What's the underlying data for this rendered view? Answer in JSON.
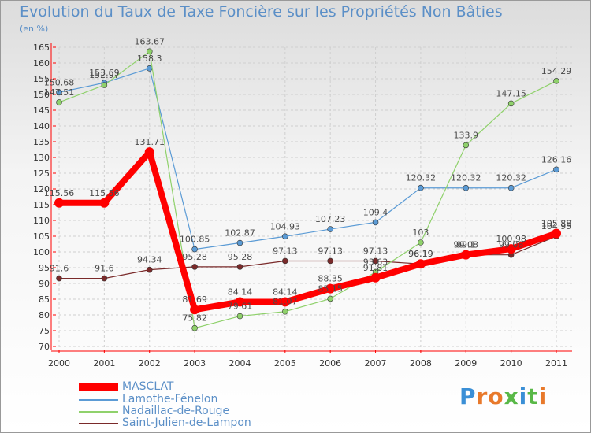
{
  "chart_data": {
    "type": "line",
    "title": "Evolution du Taux de Taxe Foncière sur les Propriétés Non Bâties",
    "ylabel": "(en %)",
    "xlabel": "",
    "x": [
      "2000",
      "2001",
      "2002",
      "2003",
      "2004",
      "2005",
      "2006",
      "2007",
      "2008",
      "2009",
      "2010",
      "2011"
    ],
    "ylim": [
      70,
      165
    ],
    "yticks": [
      70,
      75,
      80,
      85,
      90,
      95,
      100,
      105,
      110,
      115,
      120,
      125,
      130,
      135,
      140,
      145,
      150,
      155,
      160,
      165
    ],
    "series": [
      {
        "name": "MASCLAT",
        "color": "#ff0000",
        "values": [
          115.56,
          115.56,
          131.71,
          81.69,
          84.14,
          84.14,
          88.35,
          91.81,
          96.19,
          99.1,
          100.98,
          105.88
        ],
        "labels": [
          "115.56",
          "115.56",
          "131.71",
          "81.69",
          "84.14",
          "84.14",
          "88.35",
          "91.81",
          "96.19",
          "99.1",
          "100.98",
          "105.88"
        ]
      },
      {
        "name": "Lamothe-Fénelon",
        "color": "#5b9bd5",
        "values": [
          150.68,
          153.69,
          158.3,
          100.85,
          102.87,
          104.93,
          107.23,
          109.4,
          120.32,
          120.32,
          120.32,
          126.16
        ],
        "labels": [
          "150.68",
          "153.69",
          "158.3",
          "100.85",
          "102.87",
          "104.93",
          "107.23",
          "109.4",
          "120.32",
          "120.32",
          "120.32",
          "126.16"
        ]
      },
      {
        "name": "Nadaillac-de-Rouge",
        "color": "#8fd16b",
        "values": [
          147.51,
          152.97,
          163.67,
          75.82,
          79.61,
          81.07,
          85.15,
          93.63,
          103,
          133.9,
          147.15,
          154.29
        ],
        "labels": [
          "147.51",
          "152.97",
          "163.67",
          "75.82",
          "79.61",
          "81.07",
          "85.15",
          "93.63",
          "103",
          "133.9",
          "147.15",
          "154.29"
        ]
      },
      {
        "name": "Saint-Julien-de-Lampon",
        "color": "#7a2a2a",
        "values": [
          91.6,
          91.6,
          94.34,
          95.28,
          95.28,
          97.13,
          97.13,
          97.13,
          96.19,
          99.08,
          99.08,
          104.95
        ],
        "labels": [
          "91.6",
          "91.6",
          "94.34",
          "95.28",
          "95.28",
          "97.13",
          "97.13",
          "97.13",
          "96.19",
          "99.08",
          "99.08",
          "104.95"
        ]
      }
    ]
  },
  "logo": {
    "text": "Proxiti"
  }
}
